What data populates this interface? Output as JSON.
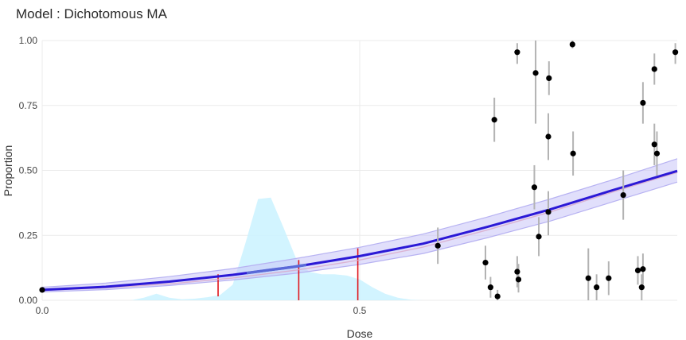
{
  "chart_data": {
    "type": "scatter",
    "title": "Model : Dichotomous MA",
    "xlabel": "Dose",
    "ylabel": "Proportion",
    "xlim": [
      0,
      1
    ],
    "ylim": [
      0,
      1
    ],
    "x_ticks": [
      {
        "value": 0,
        "label": "0.0"
      },
      {
        "value": 0.5,
        "label": "0.5"
      }
    ],
    "y_ticks": [
      {
        "value": 0,
        "label": "0.00"
      },
      {
        "value": 0.25,
        "label": "0.25"
      },
      {
        "value": 0.5,
        "label": "0.50"
      },
      {
        "value": 0.75,
        "label": "0.75"
      },
      {
        "value": 1,
        "label": "1.00"
      }
    ],
    "grid": true,
    "legend": "none",
    "colors": {
      "fit": "#2b19d6",
      "fit_segment": "#5a6ad8",
      "band": "#c9c5f8",
      "band_edge": "#b7b2f2",
      "density": "#cdf3ff",
      "bmd_lines": "#e0151c",
      "error_bars": "#b3b3b3",
      "points": "#000000",
      "inner_curve": "#d9a8c8"
    },
    "fit_curve": {
      "x": [
        0.0,
        0.1,
        0.2,
        0.3,
        0.4,
        0.5,
        0.6,
        0.7,
        0.8,
        0.9,
        1.0
      ],
      "y": [
        0.04,
        0.052,
        0.072,
        0.098,
        0.13,
        0.17,
        0.218,
        0.282,
        0.35,
        0.425,
        0.498
      ]
    },
    "band_upper": [
      0.05,
      0.066,
      0.091,
      0.122,
      0.161,
      0.204,
      0.255,
      0.32,
      0.39,
      0.465,
      0.545
    ],
    "band_lower": [
      0.032,
      0.041,
      0.057,
      0.078,
      0.104,
      0.138,
      0.18,
      0.24,
      0.305,
      0.38,
      0.455
    ],
    "inner_curve": {
      "x": [
        0.0,
        0.1,
        0.2,
        0.3,
        0.4,
        0.5,
        0.6,
        0.7,
        0.8,
        0.9,
        1.0
      ],
      "y": [
        0.038,
        0.048,
        0.063,
        0.086,
        0.116,
        0.155,
        0.205,
        0.27,
        0.34,
        0.418,
        0.492
      ]
    },
    "highlight_segment": {
      "x_start": 0.322,
      "x_end": 0.416
    },
    "density": {
      "x": [
        0.14,
        0.16,
        0.18,
        0.2,
        0.22,
        0.24,
        0.26,
        0.28,
        0.3,
        0.32,
        0.34,
        0.36,
        0.38,
        0.4,
        0.42,
        0.44,
        0.46,
        0.48,
        0.5,
        0.52,
        0.54,
        0.56,
        0.58,
        0.6
      ],
      "y": [
        0.0,
        0.01,
        0.025,
        0.01,
        0.004,
        0.006,
        0.012,
        0.02,
        0.06,
        0.22,
        0.39,
        0.395,
        0.28,
        0.16,
        0.11,
        0.1,
        0.1,
        0.095,
        0.08,
        0.05,
        0.025,
        0.01,
        0.002,
        0.0
      ]
    },
    "bmd_lines": [
      {
        "x": 0.277,
        "y_top": 0.1,
        "y_bottom": 0.015
      },
      {
        "x": 0.404,
        "y_top": 0.155,
        "y_bottom": 0.0
      },
      {
        "x": 0.497,
        "y_top": 0.2,
        "y_bottom": 0.0
      }
    ],
    "points": [
      {
        "x": 0.0,
        "y": 0.04,
        "lo": 0.04,
        "hi": 0.04
      },
      {
        "x": 0.623,
        "y": 0.21,
        "lo": 0.14,
        "hi": 0.28
      },
      {
        "x": 0.698,
        "y": 0.145,
        "lo": 0.08,
        "hi": 0.21
      },
      {
        "x": 0.706,
        "y": 0.05,
        "lo": 0.01,
        "hi": 0.09
      },
      {
        "x": 0.712,
        "y": 0.695,
        "lo": 0.61,
        "hi": 0.78
      },
      {
        "x": 0.717,
        "y": 0.015,
        "lo": 0.0,
        "hi": 0.04
      },
      {
        "x": 0.748,
        "y": 0.955,
        "lo": 0.91,
        "hi": 0.99
      },
      {
        "x": 0.748,
        "y": 0.11,
        "lo": 0.05,
        "hi": 0.17
      },
      {
        "x": 0.75,
        "y": 0.08,
        "lo": 0.03,
        "hi": 0.14
      },
      {
        "x": 0.775,
        "y": 0.435,
        "lo": 0.35,
        "hi": 0.52
      },
      {
        "x": 0.777,
        "y": 0.875,
        "lo": 0.68,
        "hi": 1.0
      },
      {
        "x": 0.782,
        "y": 0.245,
        "lo": 0.17,
        "hi": 0.32
      },
      {
        "x": 0.798,
        "y": 0.855,
        "lo": 0.79,
        "hi": 0.92
      },
      {
        "x": 0.797,
        "y": 0.63,
        "lo": 0.54,
        "hi": 0.72
      },
      {
        "x": 0.797,
        "y": 0.34,
        "lo": 0.25,
        "hi": 0.42
      },
      {
        "x": 0.835,
        "y": 0.985,
        "lo": 0.97,
        "hi": 1.0
      },
      {
        "x": 0.836,
        "y": 0.565,
        "lo": 0.48,
        "hi": 0.65
      },
      {
        "x": 0.86,
        "y": 0.085,
        "lo": 0.0,
        "hi": 0.2
      },
      {
        "x": 0.873,
        "y": 0.05,
        "lo": 0.0,
        "hi": 0.1
      },
      {
        "x": 0.892,
        "y": 0.085,
        "lo": 0.02,
        "hi": 0.15
      },
      {
        "x": 0.915,
        "y": 0.405,
        "lo": 0.31,
        "hi": 0.5
      },
      {
        "x": 0.938,
        "y": 0.115,
        "lo": 0.06,
        "hi": 0.17
      },
      {
        "x": 0.944,
        "y": 0.05,
        "lo": 0.0,
        "hi": 0.1
      },
      {
        "x": 0.946,
        "y": 0.12,
        "lo": 0.06,
        "hi": 0.18
      },
      {
        "x": 0.946,
        "y": 0.76,
        "lo": 0.68,
        "hi": 0.84
      },
      {
        "x": 0.964,
        "y": 0.89,
        "lo": 0.83,
        "hi": 0.95
      },
      {
        "x": 0.964,
        "y": 0.6,
        "lo": 0.52,
        "hi": 0.68
      },
      {
        "x": 0.968,
        "y": 0.565,
        "lo": 0.48,
        "hi": 0.65
      },
      {
        "x": 0.997,
        "y": 0.955,
        "lo": 0.91,
        "hi": 0.99
      }
    ]
  }
}
